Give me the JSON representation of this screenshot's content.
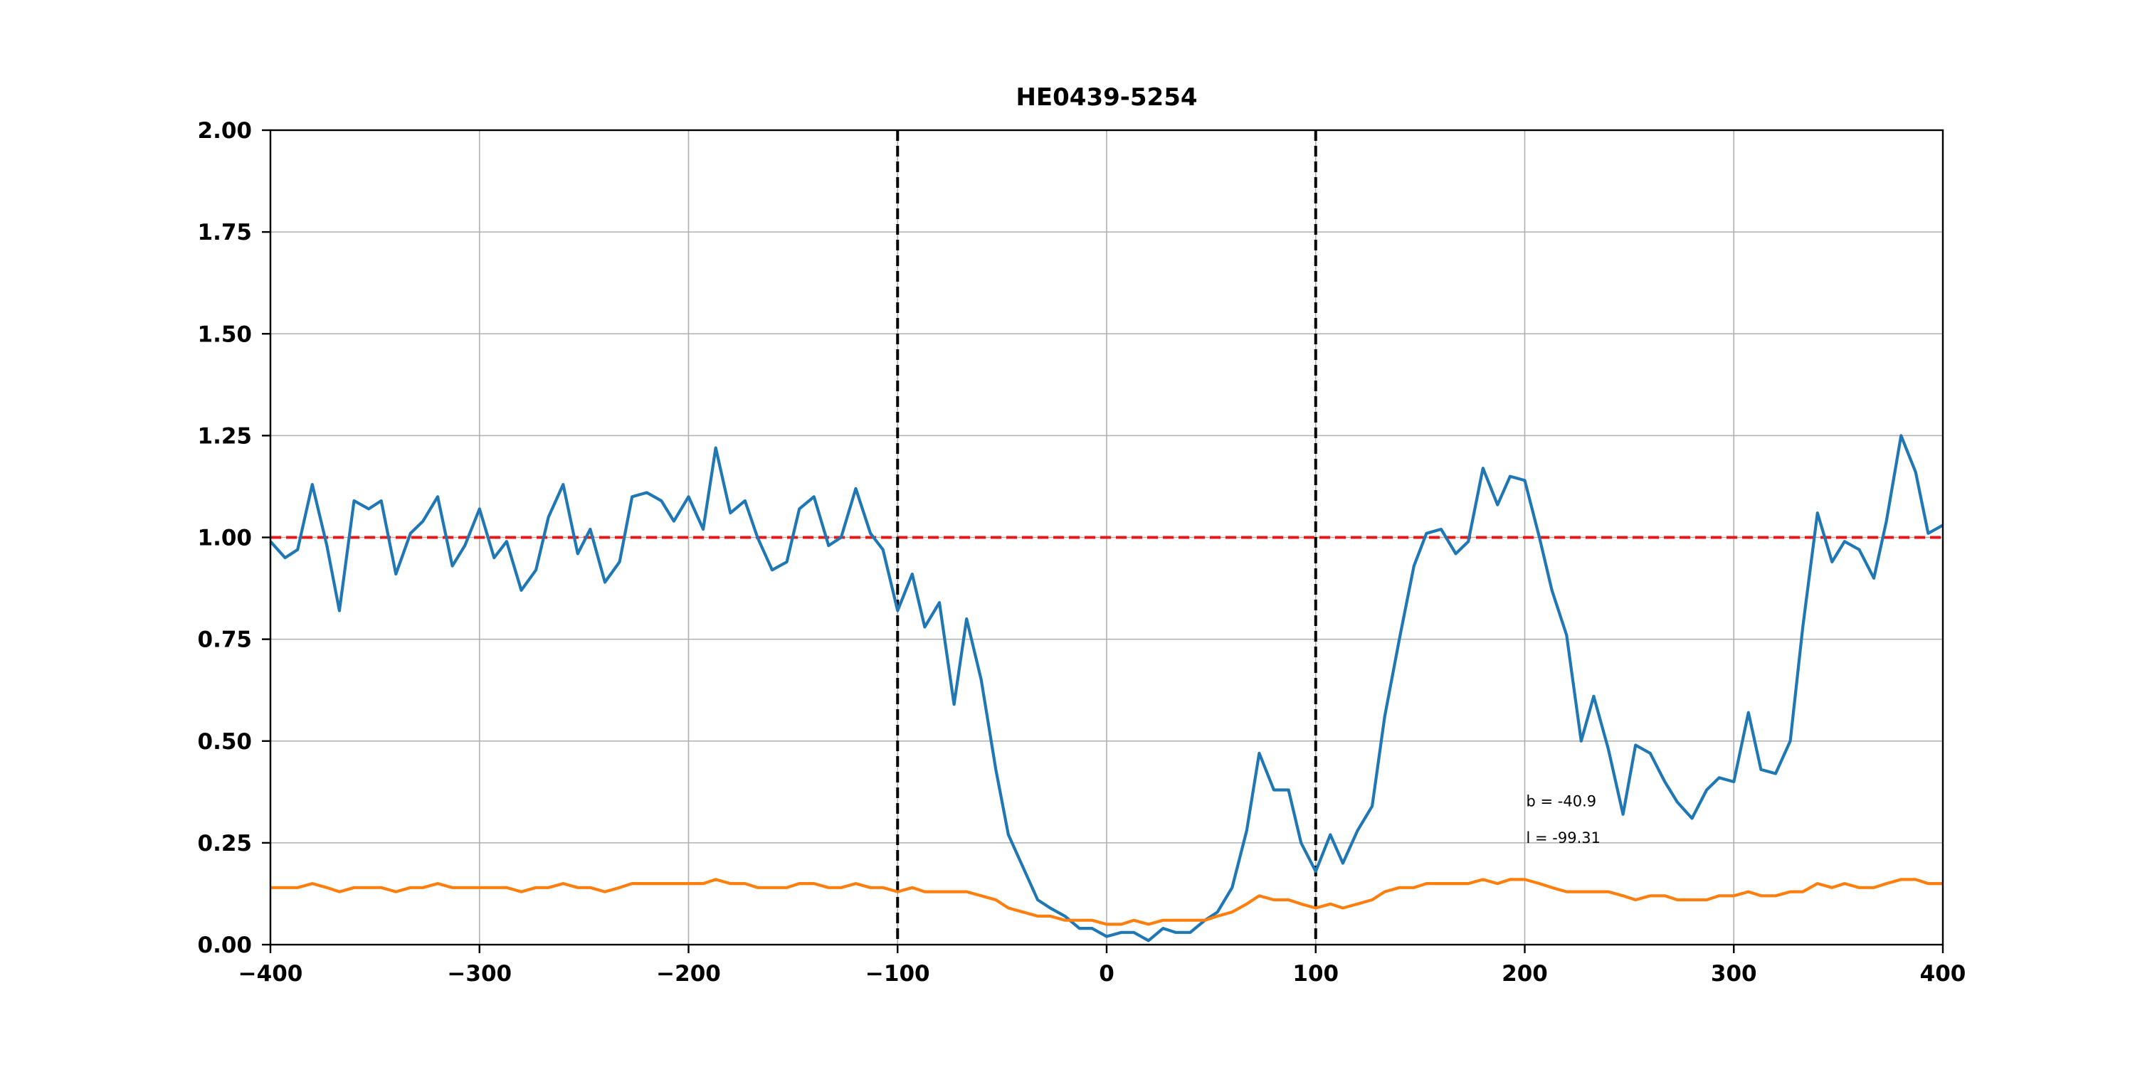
{
  "chart_data": {
    "type": "line",
    "title": "HE0439-5254",
    "xlabel": "",
    "ylabel": "",
    "xlim": [
      -400,
      400
    ],
    "ylim": [
      0,
      2
    ],
    "grid": true,
    "x_ticks": [
      -400,
      -300,
      -200,
      -100,
      0,
      100,
      200,
      300,
      400
    ],
    "x_tick_labels": [
      "−400",
      "−300",
      "−200",
      "−100",
      "0",
      "100",
      "200",
      "300",
      "400"
    ],
    "y_ticks": [
      0,
      0.25,
      0.5,
      0.75,
      1.0,
      1.25,
      1.5,
      1.75,
      2.0
    ],
    "y_tick_labels": [
      "0.00",
      "0.25",
      "0.50",
      "0.75",
      "1.00",
      "1.25",
      "1.50",
      "1.75",
      "2.00"
    ],
    "reference_lines": {
      "horizontal": {
        "y": 1.0,
        "color": "#e6191a",
        "style": "dashed"
      },
      "vertical": [
        {
          "x": -100,
          "color": "#000000",
          "style": "dashed"
        },
        {
          "x": 100,
          "color": "#000000",
          "style": "dashed"
        }
      ]
    },
    "annotations": [
      {
        "text": "b = -40.9",
        "x": 200,
        "y": 0.34
      },
      {
        "text": "l = -99.31",
        "x": 200,
        "y": 0.25
      }
    ],
    "series": [
      {
        "color": "#1f77b4",
        "x": [
          -400,
          -393,
          -387,
          -380,
          -373,
          -367,
          -360,
          -353,
          -347,
          -340,
          -333,
          -327,
          -320,
          -313,
          -307,
          -300,
          -293,
          -287,
          -280,
          -273,
          -267,
          -260,
          -253,
          -247,
          -240,
          -233,
          -227,
          -220,
          -213,
          -207,
          -200,
          -193,
          -187,
          -180,
          -173,
          -167,
          -160,
          -153,
          -147,
          -140,
          -133,
          -127,
          -120,
          -113,
          -107,
          -100,
          -93,
          -87,
          -80,
          -73,
          -67,
          -60,
          -53,
          -47,
          -40,
          -33,
          -27,
          -20,
          -13,
          -7,
          0,
          7,
          13,
          20,
          27,
          33,
          40,
          47,
          53,
          60,
          67,
          73,
          80,
          87,
          93,
          100,
          107,
          113,
          120,
          127,
          133,
          140,
          147,
          153,
          160,
          167,
          173,
          180,
          187,
          193,
          200,
          207,
          213,
          220,
          227,
          233,
          240,
          247,
          253,
          260,
          267,
          273,
          280,
          287,
          293,
          300,
          307,
          313,
          320,
          327,
          333,
          340,
          347,
          353,
          360,
          367,
          373,
          380,
          387,
          393,
          400
        ],
        "y": [
          0.99,
          0.95,
          0.97,
          1.13,
          0.98,
          0.82,
          1.09,
          1.07,
          1.09,
          0.91,
          1.01,
          1.04,
          1.1,
          0.93,
          0.98,
          1.07,
          0.95,
          0.99,
          0.87,
          0.92,
          1.05,
          1.13,
          0.96,
          1.02,
          0.89,
          0.94,
          1.1,
          1.11,
          1.09,
          1.04,
          1.1,
          1.02,
          1.22,
          1.06,
          1.09,
          1.0,
          0.92,
          0.94,
          1.07,
          1.1,
          0.98,
          1.0,
          1.12,
          1.01,
          0.97,
          0.82,
          0.91,
          0.78,
          0.84,
          0.59,
          0.8,
          0.65,
          0.43,
          0.27,
          0.19,
          0.11,
          0.09,
          0.07,
          0.04,
          0.04,
          0.02,
          0.03,
          0.03,
          0.01,
          0.04,
          0.03,
          0.03,
          0.06,
          0.08,
          0.14,
          0.28,
          0.47,
          0.38,
          0.38,
          0.25,
          0.18,
          0.27,
          0.2,
          0.28,
          0.34,
          0.56,
          0.75,
          0.93,
          1.01,
          1.02,
          0.96,
          0.99,
          1.17,
          1.08,
          1.15,
          1.14,
          1.0,
          0.87,
          0.76,
          0.5,
          0.61,
          0.48,
          0.32,
          0.49,
          0.47,
          0.4,
          0.35,
          0.31,
          0.38,
          0.41,
          0.4,
          0.57,
          0.43,
          0.42,
          0.5,
          0.78,
          1.06,
          0.94,
          0.99,
          0.97,
          0.9,
          1.04,
          1.25,
          1.16,
          1.01,
          1.03
        ]
      },
      {
        "color": "#ff7f0e",
        "x": [
          -400,
          -393,
          -387,
          -380,
          -373,
          -367,
          -360,
          -353,
          -347,
          -340,
          -333,
          -327,
          -320,
          -313,
          -307,
          -300,
          -293,
          -287,
          -280,
          -273,
          -267,
          -260,
          -253,
          -247,
          -240,
          -233,
          -227,
          -220,
          -213,
          -207,
          -200,
          -193,
          -187,
          -180,
          -173,
          -167,
          -160,
          -153,
          -147,
          -140,
          -133,
          -127,
          -120,
          -113,
          -107,
          -100,
          -93,
          -87,
          -80,
          -73,
          -67,
          -60,
          -53,
          -47,
          -40,
          -33,
          -27,
          -20,
          -13,
          -7,
          0,
          7,
          13,
          20,
          27,
          33,
          40,
          47,
          53,
          60,
          67,
          73,
          80,
          87,
          93,
          100,
          107,
          113,
          120,
          127,
          133,
          140,
          147,
          153,
          160,
          167,
          173,
          180,
          187,
          193,
          200,
          207,
          213,
          220,
          227,
          233,
          240,
          247,
          253,
          260,
          267,
          273,
          280,
          287,
          293,
          300,
          307,
          313,
          320,
          327,
          333,
          340,
          347,
          353,
          360,
          367,
          373,
          380,
          387,
          393,
          400
        ],
        "y": [
          0.14,
          0.14,
          0.14,
          0.15,
          0.14,
          0.13,
          0.14,
          0.14,
          0.14,
          0.13,
          0.14,
          0.14,
          0.15,
          0.14,
          0.14,
          0.14,
          0.14,
          0.14,
          0.13,
          0.14,
          0.14,
          0.15,
          0.14,
          0.14,
          0.13,
          0.14,
          0.15,
          0.15,
          0.15,
          0.15,
          0.15,
          0.15,
          0.16,
          0.15,
          0.15,
          0.14,
          0.14,
          0.14,
          0.15,
          0.15,
          0.14,
          0.14,
          0.15,
          0.14,
          0.14,
          0.13,
          0.14,
          0.13,
          0.13,
          0.13,
          0.13,
          0.12,
          0.11,
          0.09,
          0.08,
          0.07,
          0.07,
          0.06,
          0.06,
          0.06,
          0.05,
          0.05,
          0.06,
          0.05,
          0.06,
          0.06,
          0.06,
          0.06,
          0.07,
          0.08,
          0.1,
          0.12,
          0.11,
          0.11,
          0.1,
          0.09,
          0.1,
          0.09,
          0.1,
          0.11,
          0.13,
          0.14,
          0.14,
          0.15,
          0.15,
          0.15,
          0.15,
          0.16,
          0.15,
          0.16,
          0.16,
          0.15,
          0.14,
          0.13,
          0.13,
          0.13,
          0.13,
          0.12,
          0.11,
          0.12,
          0.12,
          0.11,
          0.11,
          0.11,
          0.12,
          0.12,
          0.13,
          0.12,
          0.12,
          0.13,
          0.13,
          0.15,
          0.14,
          0.15,
          0.14,
          0.14,
          0.15,
          0.16,
          0.16,
          0.15,
          0.15
        ]
      }
    ]
  }
}
